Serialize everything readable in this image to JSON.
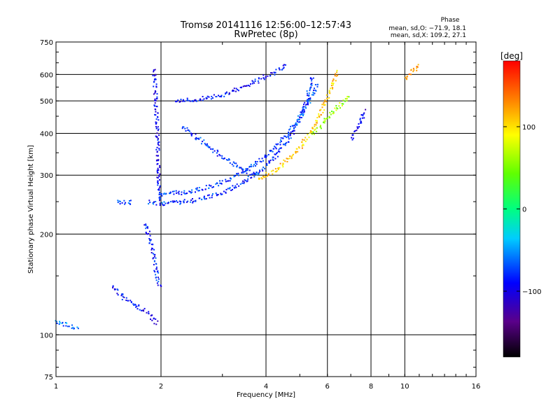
{
  "chart_data": {
    "type": "scatter",
    "title": "Tromsø 20141116 12:56:00–12:57:43",
    "subtitle": "RwPretec (8p)",
    "xlabel": "Frequency [MHz]",
    "ylabel": "Stationary phase Virtual Height [km]",
    "x_scale": "log",
    "y_scale": "log",
    "xlim": [
      1,
      16
    ],
    "ylim": [
      75,
      750
    ],
    "x_ticks": [
      {
        "value": 1,
        "label": "1"
      },
      {
        "value": 2,
        "label": "2"
      },
      {
        "value": 4,
        "label": "4"
      },
      {
        "value": 6,
        "label": "6"
      },
      {
        "value": 8,
        "label": "8"
      },
      {
        "value": 10,
        "label": "10"
      },
      {
        "value": 16,
        "label": "16"
      }
    ],
    "y_ticks": [
      {
        "value": 75,
        "label": "75"
      },
      {
        "value": 100,
        "label": "100"
      },
      {
        "value": 200,
        "label": "200"
      },
      {
        "value": 300,
        "label": "300"
      },
      {
        "value": 400,
        "label": "400"
      },
      {
        "value": 500,
        "label": "500"
      },
      {
        "value": 600,
        "label": "600"
      },
      {
        "value": 750,
        "label": "750"
      }
    ],
    "grid": true,
    "stats": {
      "heading": "Phase",
      "line_o": "mean, sd,O: −71.9, 18.1",
      "line_x": "mean, sd,X: 109.2, 27.1"
    },
    "colorbar": {
      "label": "[deg]",
      "range": [
        -180,
        180
      ],
      "ticks": [
        {
          "value": 100,
          "label": "100"
        },
        {
          "value": 0,
          "label": "0"
        },
        {
          "value": -100,
          "label": "−100"
        }
      ]
    },
    "traces": [
      {
        "name": "",
        "phase": -80,
        "points": [
          [
            1.85,
            250
          ],
          [
            2.0,
            248
          ],
          [
            2.3,
            250
          ],
          [
            2.7,
            258
          ],
          [
            3.0,
            268
          ],
          [
            3.3,
            280
          ],
          [
            3.6,
            296
          ],
          [
            3.9,
            316
          ],
          [
            4.2,
            340
          ],
          [
            4.5,
            372
          ],
          [
            4.8,
            410
          ],
          [
            5.0,
            450
          ],
          [
            5.2,
            500
          ],
          [
            5.3,
            550
          ],
          [
            5.4,
            600
          ]
        ]
      },
      {
        "name": "",
        "phase": -75,
        "points": [
          [
            2.0,
            265
          ],
          [
            2.4,
            268
          ],
          [
            2.8,
            280
          ],
          [
            3.2,
            296
          ],
          [
            3.6,
            318
          ],
          [
            4.0,
            345
          ],
          [
            4.4,
            380
          ],
          [
            4.8,
            425
          ],
          [
            5.1,
            470
          ],
          [
            5.4,
            520
          ],
          [
            5.6,
            570
          ]
        ]
      },
      {
        "name": "",
        "phase": 110,
        "points": [
          [
            3.8,
            295
          ],
          [
            4.2,
            310
          ],
          [
            4.6,
            335
          ],
          [
            5.0,
            365
          ],
          [
            5.3,
            400
          ],
          [
            5.6,
            440
          ],
          [
            5.8,
            480
          ],
          [
            6.0,
            520
          ],
          [
            6.2,
            570
          ],
          [
            6.4,
            620
          ]
        ]
      },
      {
        "name": "",
        "phase": 60,
        "points": [
          [
            5.4,
            400
          ],
          [
            5.8,
            430
          ],
          [
            6.1,
            460
          ],
          [
            6.4,
            480
          ],
          [
            6.7,
            500
          ],
          [
            6.9,
            520
          ]
        ]
      },
      {
        "name": "",
        "phase": -90,
        "points": [
          [
            2.2,
            500
          ],
          [
            2.6,
            510
          ],
          [
            3.0,
            525
          ],
          [
            3.4,
            550
          ],
          [
            3.8,
            580
          ],
          [
            4.2,
            610
          ],
          [
            4.6,
            640
          ]
        ]
      },
      {
        "name": "",
        "phase": -80,
        "points": [
          [
            2.3,
            420
          ],
          [
            2.6,
            380
          ],
          [
            2.9,
            350
          ],
          [
            3.2,
            325
          ],
          [
            3.5,
            310
          ],
          [
            3.8,
            300
          ]
        ]
      },
      {
        "name": "",
        "phase": -95,
        "points": [
          [
            1.9,
            620
          ],
          [
            1.92,
            520
          ],
          [
            1.94,
            420
          ],
          [
            1.95,
            340
          ],
          [
            1.96,
            290
          ],
          [
            1.97,
            250
          ]
        ]
      },
      {
        "name": "",
        "phase": -85,
        "points": [
          [
            1.8,
            215
          ],
          [
            1.85,
            195
          ],
          [
            1.9,
            175
          ],
          [
            1.92,
            160
          ],
          [
            1.95,
            145
          ],
          [
            2.0,
            140
          ]
        ]
      },
      {
        "name": "",
        "phase": -95,
        "points": [
          [
            1.45,
            140
          ],
          [
            1.55,
            130
          ],
          [
            1.65,
            125
          ],
          [
            1.75,
            120
          ],
          [
            1.85,
            115
          ],
          [
            1.95,
            108
          ]
        ]
      },
      {
        "name": "",
        "phase": -60,
        "points": [
          [
            1.0,
            110
          ],
          [
            1.05,
            108
          ],
          [
            1.1,
            106
          ],
          [
            1.15,
            105
          ]
        ]
      },
      {
        "name": "",
        "phase": -70,
        "points": [
          [
            1.5,
            250
          ],
          [
            1.58,
            250
          ],
          [
            1.65,
            250
          ]
        ]
      },
      {
        "name": "",
        "phase": -100,
        "points": [
          [
            7.0,
            390
          ],
          [
            7.3,
            420
          ],
          [
            7.5,
            450
          ],
          [
            7.7,
            470
          ]
        ]
      },
      {
        "name": "",
        "phase": 120,
        "points": [
          [
            10.0,
            590
          ],
          [
            10.5,
            620
          ],
          [
            11.0,
            640
          ]
        ]
      }
    ]
  }
}
